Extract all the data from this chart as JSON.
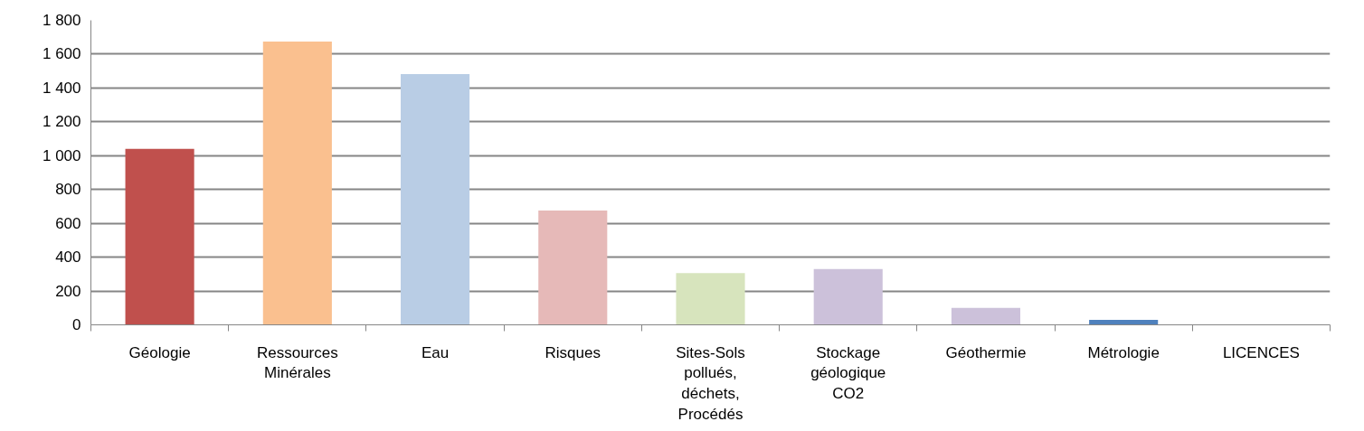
{
  "chart_data": {
    "type": "bar",
    "categories": [
      "Géologie",
      "Ressources Minérales",
      "Eau",
      "Risques",
      "Sites-Sols pollués, déchets, Procédés",
      "Stockage géologique CO2",
      "Géothermie",
      "Métrologie",
      "LICENCES"
    ],
    "values": [
      1040,
      1675,
      1482,
      676,
      306,
      330,
      100,
      30,
      0
    ],
    "colors": [
      "#c0504d",
      "#fac08f",
      "#b9cde5",
      "#e6b9b8",
      "#d7e4bd",
      "#ccc1da",
      "#ccc1da",
      "#4f81bd",
      "#8064a2"
    ],
    "ylim": [
      0,
      1800
    ],
    "yticks": [
      0,
      200,
      400,
      600,
      800,
      {
        "value": 1000,
        "label": "1 000"
      },
      {
        "value": 1200,
        "label": "1 200"
      },
      {
        "value": 1400,
        "label": "1 400"
      },
      {
        "value": 1600,
        "label": "1 600"
      },
      {
        "value": 1800,
        "label": "1 800"
      }
    ],
    "grid": "y"
  }
}
